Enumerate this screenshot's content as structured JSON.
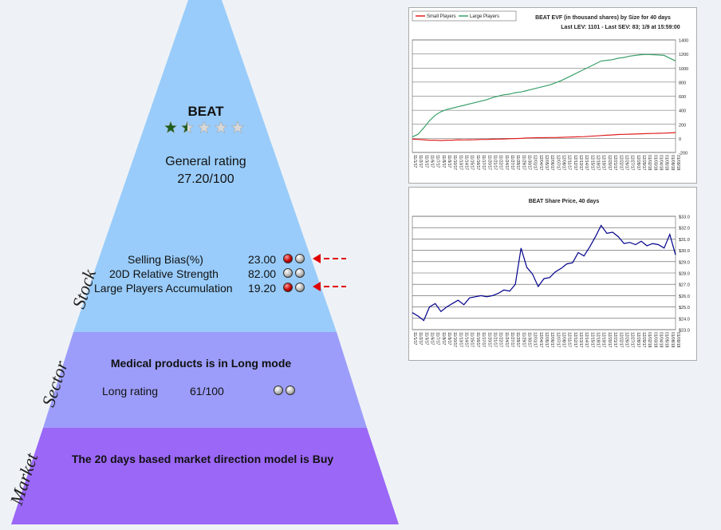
{
  "stock": {
    "ticker": "BEAT",
    "stars_filled": 1.5,
    "stars_total": 5,
    "general_rating_label": "General rating",
    "general_rating_value": "27.20/100",
    "metrics": [
      {
        "label": "Selling Bias(%)",
        "value": "23.00",
        "balls": [
          "red",
          "grey"
        ],
        "arrow": true
      },
      {
        "label": "20D Relative Strength",
        "value": "82.00",
        "balls": [
          "grey",
          "grey"
        ],
        "arrow": false
      },
      {
        "label": "Large Players Accumulation",
        "value": "19.20",
        "balls": [
          "red",
          "grey"
        ],
        "arrow": true
      }
    ]
  },
  "sector": {
    "title": "Medical products is in Long mode",
    "rating_label": "Long rating",
    "rating_value": "61/100",
    "balls": [
      "grey",
      "grey"
    ]
  },
  "market": {
    "title": "The 20 days based market direction model is Buy"
  },
  "side_labels": {
    "stock": "Stock",
    "sector": "Sector",
    "market": "Market"
  },
  "colors": {
    "stock_band": "#99ccfa",
    "sector_band": "#9c9dfa",
    "market_band": "#9b67f7",
    "arrow": "#e00000",
    "star_filled": "#1f5e1f",
    "star_empty": "#d8d8d8",
    "small_players": "#e02020",
    "large_players": "#3aa06a",
    "price_line": "#00008b"
  },
  "chart_data": [
    {
      "type": "line",
      "title": "BEAT EVF (in thousand shares) by Size for 40 days",
      "subtitle": "Last LEV: 1101 - Last SEV: 83; 1/9 at 15:59:00",
      "ylim": [
        -200,
        1400
      ],
      "yticks": [
        "1400",
        "1200",
        "1000",
        "800",
        "600",
        "400",
        "200",
        "0",
        "-200"
      ],
      "categories": [
        "11/1/17",
        "11/2/17",
        "11/3/17",
        "11/6/17",
        "11/7/17",
        "11/8/17",
        "11/9/17",
        "11/10/17",
        "11/13/17",
        "11/14/17",
        "11/15/17",
        "11/16/17",
        "11/17/17",
        "11/20/17",
        "11/21/17",
        "11/22/17",
        "11/24/17",
        "11/27/17",
        "11/28/17",
        "11/29/17",
        "11/30/17",
        "12/01/17",
        "12/04/17",
        "12/05/17",
        "12/06/17",
        "12/07/17",
        "12/08/17",
        "12/11/17",
        "12/12/17",
        "12/13/17",
        "12/14/17",
        "12/15/17",
        "12/18/17",
        "12/19/17",
        "12/20/17",
        "12/21/17",
        "12/22/17",
        "12/26/17",
        "12/27/17",
        "12/28/17",
        "12/29/17",
        "01/02/18",
        "01/03/18",
        "01/04/18",
        "01/05/18",
        "01/08/18",
        "01/09/18"
      ],
      "series": [
        {
          "name": "Small Players",
          "color": "#e02020",
          "values": [
            -10,
            -15,
            -20,
            -25,
            -25,
            -30,
            -25,
            -25,
            -20,
            -22,
            -20,
            -18,
            -15,
            -15,
            -12,
            -10,
            -8,
            -5,
            -3,
            0,
            5,
            8,
            10,
            10,
            12,
            12,
            15,
            18,
            20,
            22,
            25,
            30,
            35,
            40,
            45,
            50,
            55,
            58,
            60,
            62,
            65,
            68,
            70,
            72,
            75,
            78,
            83
          ]
        },
        {
          "name": "Large Players",
          "color": "#3aa06a",
          "values": [
            20,
            60,
            150,
            250,
            330,
            380,
            410,
            430,
            450,
            470,
            490,
            510,
            530,
            550,
            580,
            600,
            620,
            630,
            650,
            660,
            680,
            700,
            720,
            740,
            760,
            790,
            820,
            860,
            900,
            940,
            980,
            1020,
            1060,
            1100,
            1110,
            1120,
            1140,
            1150,
            1170,
            1180,
            1190,
            1195,
            1190,
            1185,
            1180,
            1140,
            1101
          ]
        }
      ]
    },
    {
      "type": "line",
      "title": "BEAT Share Price, 40 days",
      "ylim": [
        23,
        33
      ],
      "yticks": [
        "$33.0",
        "$32.0",
        "$31.0",
        "$30.0",
        "$29.0",
        "$28.0",
        "$27.0",
        "$26.0",
        "$25.0",
        "$24.0",
        "$23.0"
      ],
      "categories": [
        "11/1/17",
        "11/2/17",
        "11/3/17",
        "11/6/17",
        "11/7/17",
        "11/8/17",
        "11/9/17",
        "11/10/17",
        "11/13/17",
        "11/14/17",
        "11/15/17",
        "11/16/17",
        "11/17/17",
        "11/20/17",
        "11/21/17",
        "11/22/17",
        "11/24/17",
        "11/27/17",
        "11/28/17",
        "11/29/17",
        "11/30/17",
        "12/01/17",
        "12/04/17",
        "12/05/17",
        "12/06/17",
        "12/07/17",
        "12/08/17",
        "12/11/17",
        "12/12/17",
        "12/13/17",
        "12/14/17",
        "12/15/17",
        "12/18/17",
        "12/19/17",
        "12/20/17",
        "12/21/17",
        "12/22/17",
        "12/26/17",
        "12/27/17",
        "12/28/17",
        "12/29/17",
        "01/02/18",
        "01/03/18",
        "01/04/18",
        "01/05/18",
        "01/08/18",
        "01/09/18"
      ],
      "series": [
        {
          "name": "",
          "color": "#00008b",
          "values": [
            24.5,
            24.2,
            23.8,
            25.0,
            25.3,
            24.6,
            25.0,
            25.3,
            25.6,
            25.2,
            25.8,
            25.9,
            26.0,
            25.9,
            26.0,
            26.2,
            26.5,
            26.4,
            27.0,
            30.2,
            28.5,
            27.9,
            26.8,
            27.5,
            27.6,
            28.1,
            28.4,
            28.8,
            28.9,
            29.8,
            29.5,
            30.3,
            31.2,
            32.2,
            31.5,
            31.6,
            31.2,
            30.6,
            30.7,
            30.5,
            30.8,
            30.4,
            30.6,
            30.5,
            30.2,
            31.4,
            29.6
          ]
        }
      ]
    }
  ]
}
